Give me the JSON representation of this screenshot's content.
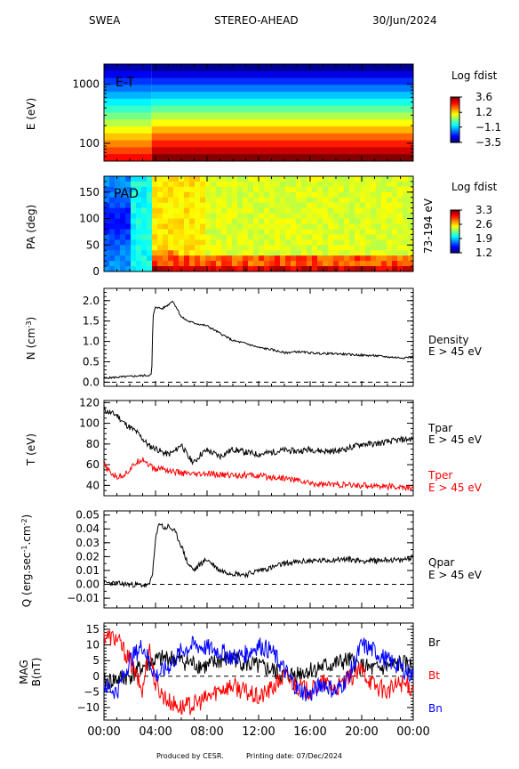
{
  "header": {
    "instrument": "SWEA",
    "spacecraft": "STEREO-AHEAD",
    "date": "30/Jun/2024"
  },
  "footer": {
    "credit": "Produced by CESR.",
    "printing": "Printing date: 07/Dec/2024"
  },
  "chart_data": [
    {
      "type": "heatmap",
      "panel": "energy-time",
      "annotation": "E-T",
      "ylabel": "E (eV)",
      "yscale": "log",
      "ylim": [
        50,
        2200
      ],
      "yticks": [
        100,
        1000
      ],
      "colorbar": {
        "title": "Log fdist",
        "ticks": [
          3.6,
          1.2,
          -1.1,
          -3.5
        ],
        "range": [
          -3.5,
          3.6
        ]
      }
    },
    {
      "type": "heatmap",
      "panel": "pitch-angle",
      "annotation": "PAD",
      "ylabel": "PA (deg)",
      "ylim": [
        0,
        180
      ],
      "yticks": [
        0,
        50,
        100,
        150
      ],
      "right_label": "73-194 eV",
      "colorbar": {
        "title": "Log fdist",
        "ticks": [
          3.3,
          2.6,
          1.9,
          1.2
        ],
        "range": [
          1.2,
          3.3
        ]
      }
    },
    {
      "type": "line",
      "panel": "density",
      "ylabel": "N (cm",
      "ylabel_sup": "-3",
      "ylabel_end": ")",
      "ylim": [
        -0.1,
        2.3
      ],
      "yticks": [
        0.0,
        0.5,
        1.0,
        1.5,
        2.0
      ],
      "reference_line": 0,
      "series": [
        {
          "name": "Density",
          "sublabel": "E > 45 eV",
          "color": "#000000",
          "x": [
            0,
            0.5,
            1,
            1.5,
            2,
            2.5,
            3,
            3.5,
            3.7,
            3.8,
            4,
            4.5,
            5,
            5.3,
            5.6,
            6,
            6.5,
            7,
            8,
            9,
            10,
            11,
            12,
            13,
            14,
            15,
            16,
            17,
            18,
            19,
            20,
            21,
            22,
            23,
            24
          ],
          "y": [
            0.1,
            0.11,
            0.12,
            0.13,
            0.14,
            0.15,
            0.16,
            0.17,
            0.18,
            1.6,
            1.85,
            1.8,
            1.9,
            2.0,
            1.85,
            1.6,
            1.5,
            1.45,
            1.38,
            1.2,
            1.02,
            0.95,
            0.85,
            0.8,
            0.72,
            0.75,
            0.72,
            0.7,
            0.7,
            0.68,
            0.66,
            0.65,
            0.62,
            0.6,
            0.62
          ]
        }
      ]
    },
    {
      "type": "line",
      "panel": "temperature",
      "ylabel": "T (eV)",
      "ylim": [
        30,
        122
      ],
      "yticks": [
        40,
        60,
        80,
        100,
        120
      ],
      "series": [
        {
          "name": "Tpar",
          "sublabel": "E > 45 eV",
          "color": "#000000",
          "x": [
            0,
            0.5,
            1,
            1.5,
            2,
            2.5,
            3,
            3.5,
            4,
            4.5,
            5,
            5.5,
            6,
            6.5,
            7,
            7.5,
            8,
            9,
            10,
            11,
            12,
            13,
            14,
            15,
            16,
            17,
            18,
            19,
            20,
            21,
            22,
            23,
            24
          ],
          "y": [
            113,
            110,
            108,
            101,
            96,
            92,
            85,
            78,
            76,
            72,
            70,
            73,
            80,
            68,
            62,
            70,
            74,
            68,
            75,
            72,
            70,
            72,
            74,
            73,
            75,
            73,
            73,
            76,
            80,
            80,
            82,
            84,
            85
          ]
        },
        {
          "name": "Tper",
          "sublabel": "E > 45 eV",
          "color": "#ff0000",
          "x": [
            0,
            0.5,
            1,
            1.5,
            2,
            2.5,
            3,
            3.5,
            4,
            4.5,
            5,
            6,
            7,
            8,
            9,
            10,
            11,
            12,
            13,
            14,
            15,
            16,
            17,
            18,
            19,
            20,
            21,
            22,
            23,
            24
          ],
          "y": [
            60,
            52,
            48,
            50,
            55,
            62,
            66,
            60,
            55,
            57,
            54,
            52,
            50,
            51,
            50,
            50,
            50,
            49,
            48,
            47,
            45,
            42,
            41,
            41,
            40,
            40,
            40,
            39,
            38,
            37
          ]
        }
      ]
    },
    {
      "type": "line",
      "panel": "heat-flux",
      "ylabel": "Q (erg.sec",
      "ylabel_sup1": "-1",
      "ylabel_mid": ".cm",
      "ylabel_sup2": "-2",
      "ylabel_end": ")",
      "ylim": [
        -0.017,
        0.053
      ],
      "yticks": [
        -0.01,
        0.0,
        0.01,
        0.02,
        0.03,
        0.04,
        0.05
      ],
      "reference_line": 0,
      "series": [
        {
          "name": "Qpar",
          "sublabel": "E > 45 eV",
          "color": "#000000",
          "x": [
            0,
            0.5,
            1,
            1.5,
            2,
            2.5,
            3,
            3.5,
            3.8,
            4,
            4.3,
            4.7,
            5,
            5.5,
            6,
            6.5,
            7,
            7.5,
            8,
            9,
            10,
            11,
            12,
            13,
            14,
            15,
            16,
            17,
            18,
            19,
            20,
            21,
            22,
            23,
            24
          ],
          "y": [
            0.001,
            0.001,
            0.0005,
            0.0002,
            0.0,
            -0.0003,
            -0.0005,
            -0.001,
            0.01,
            0.032,
            0.045,
            0.04,
            0.042,
            0.038,
            0.028,
            0.015,
            0.01,
            0.015,
            0.018,
            0.01,
            0.008,
            0.007,
            0.01,
            0.012,
            0.015,
            0.016,
            0.017,
            0.017,
            0.018,
            0.018,
            0.017,
            0.017,
            0.018,
            0.017,
            0.02
          ]
        }
      ]
    },
    {
      "type": "line",
      "panel": "magnetic-field",
      "ylabel": "MAG",
      "ylabel2": "B(nT)",
      "ylim": [
        -14,
        17
      ],
      "yticks": [
        -10,
        -5,
        0,
        5,
        10,
        15
      ],
      "reference_line": 0,
      "series": [
        {
          "name": "Br",
          "color": "#000000",
          "x": [
            0,
            1,
            2,
            3,
            4,
            5,
            6,
            7,
            8,
            9,
            10,
            11,
            12,
            13,
            14,
            15,
            16,
            17,
            18,
            19,
            20,
            21,
            22,
            23,
            24
          ],
          "y": [
            -2,
            -1,
            0,
            3,
            5,
            6,
            5,
            4,
            3,
            5,
            6,
            4,
            3,
            2,
            0,
            1,
            2,
            3,
            4,
            5,
            3,
            2,
            3,
            4,
            3
          ]
        },
        {
          "name": "Bt",
          "color": "#ff0000",
          "x": [
            0,
            1,
            2,
            3,
            3.5,
            4,
            5,
            6,
            7,
            8,
            9,
            10,
            11,
            12,
            13,
            14,
            15,
            16,
            17,
            18,
            19,
            20,
            21,
            22,
            23,
            24
          ],
          "y": [
            13,
            12,
            5,
            -5,
            10,
            -3,
            -8,
            -10,
            -9,
            -7,
            -4,
            -3,
            -5,
            -7,
            -4,
            0,
            -3,
            -5,
            -2,
            -4,
            -1,
            2,
            -3,
            -5,
            -2,
            -4
          ]
        },
        {
          "name": "Bn",
          "color": "#0000ff",
          "x": [
            0,
            1,
            2,
            3,
            4,
            5,
            6,
            7,
            8,
            9,
            10,
            11,
            12,
            13,
            14,
            15,
            16,
            17,
            18,
            19,
            20,
            21,
            22,
            23,
            24
          ],
          "y": [
            -3,
            -5,
            5,
            10,
            0,
            3,
            8,
            10,
            9,
            8,
            6,
            7,
            10,
            8,
            2,
            -4,
            -6,
            -2,
            -5,
            0,
            10,
            8,
            5,
            3,
            0
          ]
        }
      ]
    }
  ],
  "x_axis": {
    "ticks": [
      "00:00",
      "04:00",
      "08:00",
      "12:00",
      "16:00",
      "20:00",
      "00:00"
    ],
    "range_hours": [
      0,
      24
    ]
  }
}
